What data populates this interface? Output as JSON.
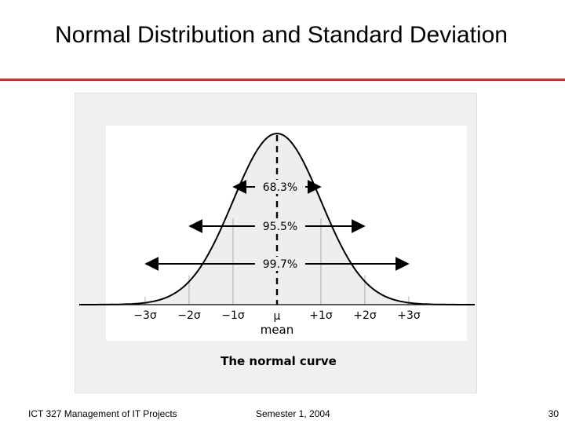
{
  "slide": {
    "title": "Normal Distribution and Standard Deviation",
    "accent_color": "#b03a3a"
  },
  "figure": {
    "caption": "The normal curve",
    "center_label": "µ",
    "center_sublabel": "mean",
    "axis_ticks": [
      "−3σ",
      "−2σ",
      "−1σ",
      "+1σ",
      "+2σ",
      "+3σ"
    ],
    "intervals": [
      {
        "label": "68.3%",
        "from": -1,
        "to": 1
      },
      {
        "label": "95.5%",
        "from": -2,
        "to": 2
      },
      {
        "label": "99.7%",
        "from": -3,
        "to": 3
      }
    ]
  },
  "footer": {
    "course": "ICT 327 Management of IT Projects",
    "semester": "Semester 1, 2004",
    "page_number": "30"
  }
}
